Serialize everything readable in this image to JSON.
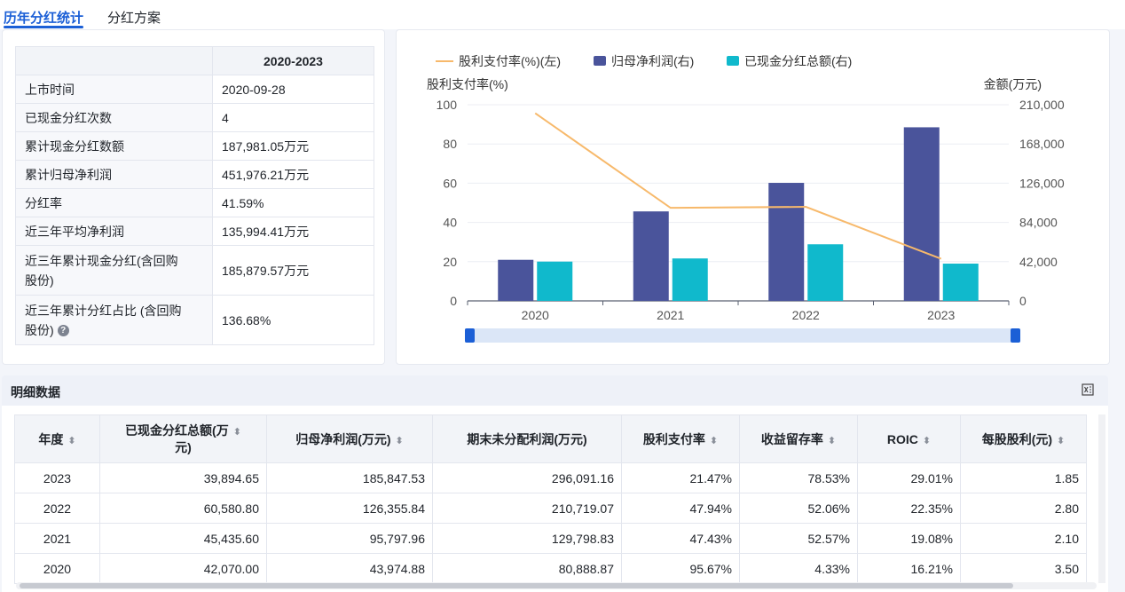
{
  "tabs": [
    {
      "label": "历年分红统计"
    },
    {
      "label": "分红方案"
    }
  ],
  "summary": {
    "header": "2020-2023",
    "rows": [
      {
        "label": "上市时间",
        "value": "2020-09-28"
      },
      {
        "label": "已现金分红次数",
        "value": "4"
      },
      {
        "label": "累计现金分红数额",
        "value": "187,981.05万元"
      },
      {
        "label": "累计归母净利润",
        "value": "451,976.21万元"
      },
      {
        "label": "分红率",
        "value": "41.59%"
      },
      {
        "label": "近三年平均净利润",
        "value": "135,994.41万元"
      },
      {
        "label_line1": "近三年累计现金分红(含回购",
        "label_line2": "股份)",
        "value": "185,879.57万元"
      },
      {
        "label_line1": "近三年累计分红占比 (含回购",
        "label_line2": "股份)",
        "value": "136.68%",
        "help": "?"
      }
    ]
  },
  "chart_data": {
    "type": "bar",
    "categories": [
      "2020",
      "2021",
      "2022",
      "2023"
    ],
    "series": [
      {
        "name": "股利支付率(%)(左)",
        "type": "line",
        "axis": "left",
        "values": [
          95.67,
          47.43,
          47.94,
          21.47
        ],
        "color": "#f7b96b"
      },
      {
        "name": "归母净利润(右)",
        "type": "bar",
        "axis": "right",
        "values": [
          43974.88,
          95797.96,
          126355.84,
          185847.53
        ],
        "color": "#4a549b"
      },
      {
        "name": "已现金分红总额(右)",
        "type": "bar",
        "axis": "right",
        "values": [
          42070.0,
          45435.6,
          60580.8,
          39894.65
        ],
        "color": "#10b9cc"
      }
    ],
    "left_axis": {
      "label": "股利支付率(%)",
      "ticks": [
        "0",
        "20",
        "40",
        "60",
        "80",
        "100"
      ],
      "ylim": [
        0,
        100
      ]
    },
    "right_axis": {
      "label": "金额(万元)",
      "ticks": [
        "0",
        "42,000",
        "84,000",
        "126,000",
        "168,000",
        "210,000"
      ],
      "ylim": [
        0,
        210000
      ]
    },
    "legend_position": "top-left"
  },
  "detail": {
    "title": "明细数据",
    "columns": [
      {
        "label": "年度"
      },
      {
        "label_line1": "已现金分红总额(万",
        "label_line2": "元)"
      },
      {
        "label": "归母净利润(万元)"
      },
      {
        "label": "期末未分配利润(万元)"
      },
      {
        "label": "股利支付率"
      },
      {
        "label": "收益留存率"
      },
      {
        "label": "ROIC"
      },
      {
        "label": "每股股利(元)"
      }
    ],
    "rows": [
      [
        "2023",
        "39,894.65",
        "185,847.53",
        "296,091.16",
        "21.47%",
        "78.53%",
        "29.01%",
        "1.85"
      ],
      [
        "2022",
        "60,580.80",
        "126,355.84",
        "210,719.07",
        "47.94%",
        "52.06%",
        "22.35%",
        "2.80"
      ],
      [
        "2021",
        "45,435.60",
        "95,797.96",
        "129,798.83",
        "47.43%",
        "52.57%",
        "19.08%",
        "2.10"
      ],
      [
        "2020",
        "42,070.00",
        "43,974.88",
        "80,888.87",
        "95.67%",
        "4.33%",
        "16.21%",
        "3.50"
      ]
    ]
  }
}
